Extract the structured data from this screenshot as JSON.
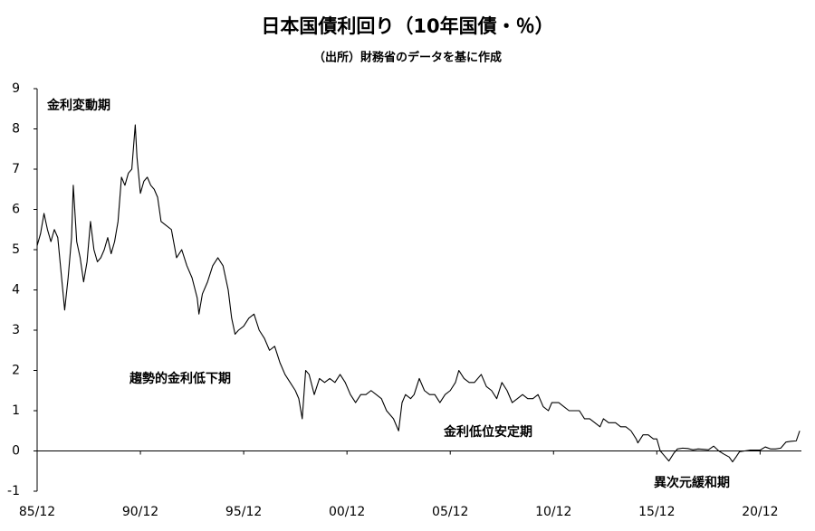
{
  "chart_data": {
    "type": "line",
    "title": "日本国債利回り（10年国債・％）",
    "subtitle": "（出所）財務省のデータを基に作成",
    "annotations": [
      "金利変動期",
      "趨勢的金利低下期",
      "金利低位安定期",
      "異次元緩和期"
    ],
    "color": "#000000",
    "xlim": [
      "1985-12",
      "2022-12"
    ],
    "xticks": [
      {
        "value": "1985-12",
        "label": "85/12"
      },
      {
        "value": "1990-12",
        "label": "90/12"
      },
      {
        "value": "1995-12",
        "label": "95/12"
      },
      {
        "value": "2000-12",
        "label": "00/12"
      },
      {
        "value": "2005-12",
        "label": "05/12"
      },
      {
        "value": "2010-12",
        "label": "10/12"
      },
      {
        "value": "2015-12",
        "label": "15/12"
      },
      {
        "value": "2020-12",
        "label": "20/12"
      }
    ],
    "ylim": [
      -1,
      9
    ],
    "yticks": [
      -1,
      0,
      1,
      2,
      3,
      4,
      5,
      6,
      7,
      8,
      9
    ],
    "x": [
      "1985-12",
      "1986-02",
      "1986-04",
      "1986-06",
      "1986-08",
      "1986-10",
      "1986-12",
      "1987-02",
      "1987-04",
      "1987-06",
      "1987-08",
      "1987-09",
      "1987-11",
      "1988-01",
      "1988-03",
      "1988-05",
      "1988-07",
      "1988-09",
      "1988-11",
      "1989-01",
      "1989-03",
      "1989-05",
      "1989-07",
      "1989-09",
      "1989-11",
      "1990-01",
      "1990-03",
      "1990-05",
      "1990-07",
      "1990-09",
      "1990-10",
      "1990-12",
      "1991-02",
      "1991-04",
      "1991-06",
      "1991-08",
      "1991-10",
      "1991-12",
      "1992-03",
      "1992-06",
      "1992-09",
      "1992-12",
      "1993-03",
      "1993-06",
      "1993-09",
      "1993-10",
      "1993-12",
      "1994-03",
      "1994-06",
      "1994-09",
      "1994-12",
      "1995-03",
      "1995-05",
      "1995-07",
      "1995-09",
      "1995-12",
      "1996-03",
      "1996-06",
      "1996-09",
      "1996-12",
      "1997-03",
      "1997-06",
      "1997-09",
      "1997-12",
      "1998-03",
      "1998-06",
      "1998-08",
      "1998-10",
      "1998-12",
      "1999-02",
      "1999-05",
      "1999-08",
      "1999-11",
      "2000-02",
      "2000-05",
      "2000-08",
      "2000-11",
      "2001-02",
      "2001-05",
      "2001-08",
      "2001-11",
      "2002-02",
      "2002-05",
      "2002-08",
      "2002-11",
      "2003-03",
      "2003-06",
      "2003-08",
      "2003-10",
      "2004-01",
      "2004-03",
      "2004-06",
      "2004-09",
      "2004-12",
      "2005-03",
      "2005-06",
      "2005-09",
      "2005-12",
      "2006-03",
      "2006-05",
      "2006-08",
      "2006-11",
      "2007-02",
      "2007-06",
      "2007-09",
      "2007-12",
      "2008-03",
      "2008-06",
      "2008-09",
      "2008-12",
      "2009-03",
      "2009-06",
      "2009-09",
      "2009-12",
      "2010-03",
      "2010-06",
      "2010-09",
      "2010-11",
      "2011-03",
      "2011-06",
      "2011-09",
      "2011-12",
      "2012-03",
      "2012-06",
      "2012-09",
      "2012-12",
      "2013-03",
      "2013-05",
      "2013-08",
      "2013-12",
      "2014-03",
      "2014-06",
      "2014-09",
      "2014-12",
      "2015-01",
      "2015-04",
      "2015-07",
      "2015-10",
      "2015-12",
      "2016-02",
      "2016-04",
      "2016-07",
      "2016-10",
      "2016-12",
      "2017-03",
      "2017-06",
      "2017-09",
      "2017-12",
      "2018-03",
      "2018-06",
      "2018-09",
      "2018-12",
      "2019-03",
      "2019-06",
      "2019-08",
      "2019-10",
      "2019-12",
      "2020-03",
      "2020-06",
      "2020-09",
      "2020-12",
      "2021-03",
      "2021-06",
      "2021-09",
      "2021-12",
      "2022-03",
      "2022-06",
      "2022-09",
      "2022-11"
    ],
    "values": [
      5.1,
      5.4,
      5.9,
      5.5,
      5.2,
      5.5,
      5.3,
      4.4,
      3.5,
      4.3,
      5.3,
      6.6,
      5.2,
      4.8,
      4.2,
      4.7,
      5.7,
      5.0,
      4.7,
      4.8,
      5.0,
      5.3,
      4.9,
      5.2,
      5.7,
      6.8,
      6.6,
      6.9,
      7.0,
      8.1,
      7.3,
      6.4,
      6.7,
      6.8,
      6.6,
      6.5,
      6.3,
      5.7,
      5.6,
      5.5,
      4.8,
      5.0,
      4.6,
      4.3,
      3.8,
      3.4,
      3.9,
      4.2,
      4.6,
      4.8,
      4.6,
      4.0,
      3.3,
      2.9,
      3.0,
      3.1,
      3.3,
      3.4,
      3.0,
      2.8,
      2.5,
      2.6,
      2.2,
      1.9,
      1.7,
      1.5,
      1.3,
      0.8,
      2.0,
      1.9,
      1.4,
      1.8,
      1.7,
      1.8,
      1.7,
      1.9,
      1.7,
      1.4,
      1.2,
      1.4,
      1.4,
      1.5,
      1.4,
      1.3,
      1.0,
      0.8,
      0.5,
      1.2,
      1.4,
      1.3,
      1.4,
      1.8,
      1.5,
      1.4,
      1.4,
      1.2,
      1.4,
      1.5,
      1.7,
      2.0,
      1.8,
      1.7,
      1.7,
      1.9,
      1.6,
      1.5,
      1.3,
      1.7,
      1.5,
      1.2,
      1.3,
      1.4,
      1.3,
      1.3,
      1.4,
      1.1,
      1.0,
      1.2,
      1.2,
      1.1,
      1.0,
      1.0,
      1.0,
      0.8,
      0.8,
      0.7,
      0.6,
      0.8,
      0.7,
      0.7,
      0.6,
      0.6,
      0.5,
      0.3,
      0.2,
      0.4,
      0.4,
      0.3,
      0.3,
      0.0,
      -0.1,
      -0.25,
      -0.05,
      0.05,
      0.07,
      0.06,
      0.03,
      0.05,
      0.04,
      0.03,
      0.12,
      0.0,
      -0.08,
      -0.15,
      -0.27,
      -0.15,
      -0.02,
      0.0,
      0.02,
      0.02,
      0.02,
      0.1,
      0.05,
      0.05,
      0.07,
      0.22,
      0.24,
      0.25,
      0.5
    ]
  }
}
